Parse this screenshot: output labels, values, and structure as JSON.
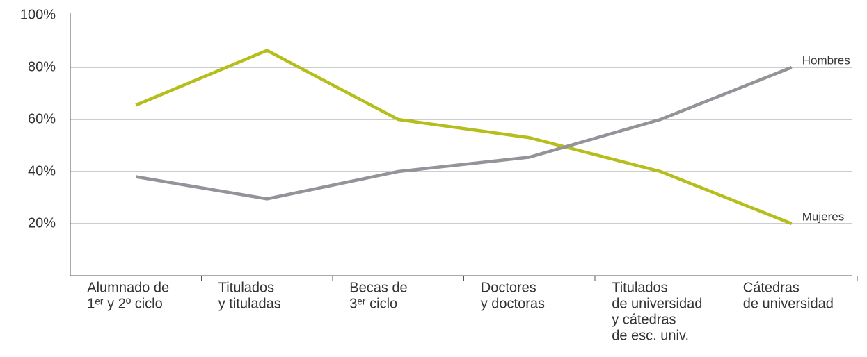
{
  "chart_data": {
    "type": "line",
    "categories": [
      [
        "Alumnado de",
        "1ᵉʳ y 2º ciclo"
      ],
      [
        "Titulados",
        "y tituladas"
      ],
      [
        "Becas de",
        "3ᵉʳ ciclo"
      ],
      [
        "Doctores",
        "y doctoras"
      ],
      [
        "Titulados",
        "de universidad",
        "y cátedras",
        "de esc. univ."
      ],
      [
        "Cátedras",
        "de universidad"
      ]
    ],
    "series": [
      {
        "name": "Mujeres",
        "color": "#b5be1a",
        "values": [
          65.5,
          86.5,
          60,
          53,
          40,
          20
        ]
      },
      {
        "name": "Hombres",
        "color": "#949399",
        "values": [
          38,
          29.5,
          40,
          45.5,
          60,
          80
        ]
      }
    ],
    "ylim": [
      0,
      100
    ],
    "yticks": [
      {
        "value": 20,
        "label": "20%"
      },
      {
        "value": 40,
        "label": "40%"
      },
      {
        "value": 60,
        "label": "60%"
      },
      {
        "value": 80,
        "label": "80%"
      },
      {
        "value": 100,
        "label": "100%"
      }
    ],
    "grid": true
  }
}
